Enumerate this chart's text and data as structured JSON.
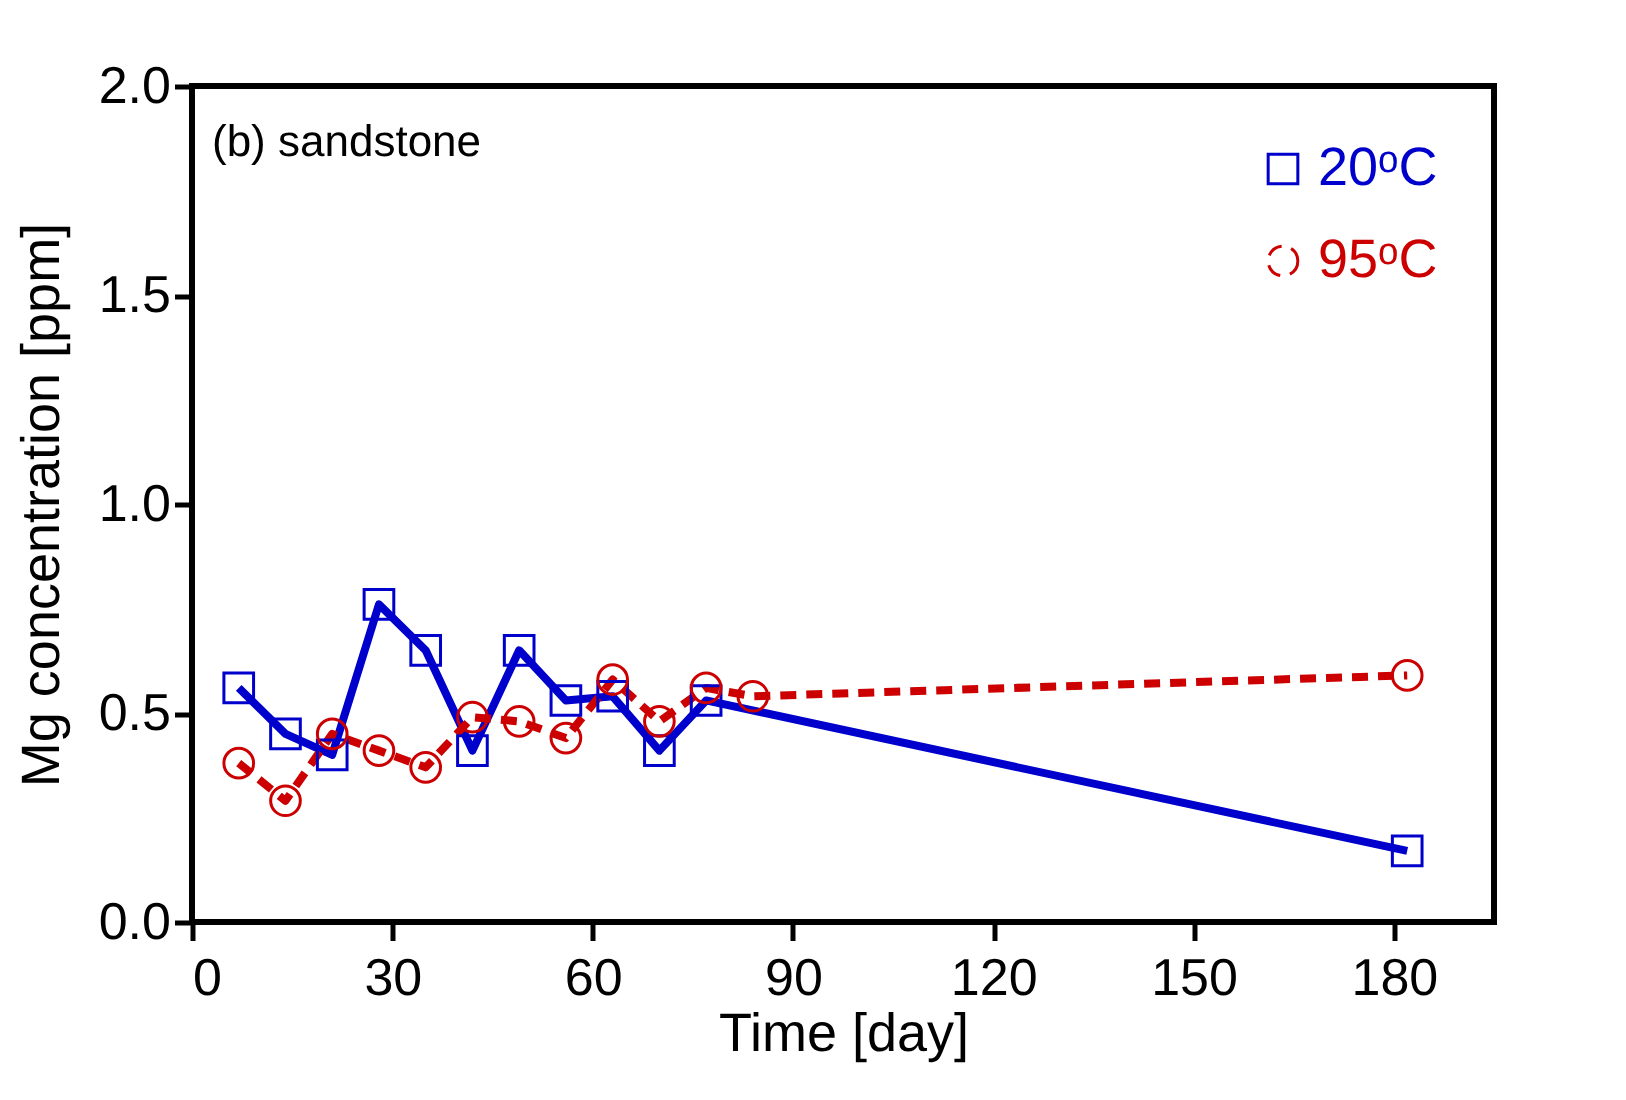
{
  "chart_data": {
    "type": "line",
    "xlabel": "Time [day]",
    "ylabel": "Mg concentration [ppm]",
    "annotations": [
      "(b) sandstone"
    ],
    "xlim": [
      0,
      195
    ],
    "xticks": [
      0,
      30,
      60,
      90,
      120,
      150,
      180
    ],
    "ylim": [
      0,
      2
    ],
    "yticks": [
      {
        "value": 0,
        "label": "0.0"
      },
      {
        "value": 0.5,
        "label": "0.5"
      },
      {
        "value": 1,
        "label": "1.0"
      },
      {
        "value": 1.5,
        "label": "1.5"
      },
      {
        "value": 2,
        "label": "2.0"
      }
    ],
    "grid": false,
    "legend": "top right",
    "series": [
      {
        "name": "20ᵒC",
        "color": "#0000cc",
        "marker": "square",
        "line_style": "solid",
        "x": [
          7,
          14,
          21,
          28,
          35,
          42,
          49,
          56,
          63,
          70,
          77,
          182
        ],
        "values": [
          0.56,
          0.45,
          0.4,
          0.76,
          0.65,
          0.41,
          0.65,
          0.53,
          0.54,
          0.41,
          0.53,
          0.17
        ]
      },
      {
        "name": "95ᵒC",
        "color": "#cc0000",
        "marker": "circle",
        "line_style": "dashed",
        "x": [
          7,
          14,
          21,
          28,
          35,
          42,
          49,
          56,
          63,
          70,
          77,
          84,
          182
        ],
        "values": [
          0.38,
          0.29,
          0.45,
          0.41,
          0.37,
          0.49,
          0.48,
          0.44,
          0.58,
          0.48,
          0.56,
          0.54,
          0.59
        ]
      }
    ]
  }
}
